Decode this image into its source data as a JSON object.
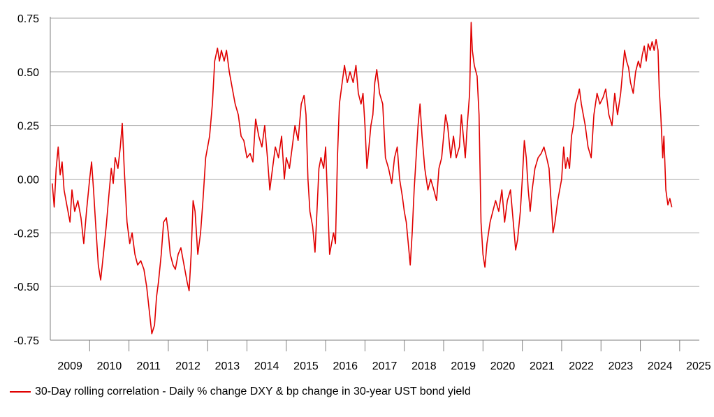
{
  "chart_data": {
    "type": "line",
    "title": "",
    "xlabel": "",
    "ylabel": "",
    "xlim": [
      2009.0,
      2025.5
    ],
    "ylim": [
      -0.75,
      0.75
    ],
    "y_ticks": [
      0.75,
      0.5,
      0.25,
      0.0,
      -0.25,
      -0.5,
      -0.75
    ],
    "y_tick_labels": [
      "0.75",
      "0.50",
      "0.25",
      "0.00",
      "-0.25",
      "-0.50",
      "-0.75"
    ],
    "x_tick_labels": [
      "2009",
      "2010",
      "2011",
      "2012",
      "2013",
      "2014",
      "2015",
      "2016",
      "2017",
      "2018",
      "2019",
      "2020",
      "2021",
      "2022",
      "2023",
      "2024",
      "2025"
    ],
    "grid": "horizontal",
    "legend_position": "bottom-left",
    "series": [
      {
        "name": "30-Day rolling correlation - Daily % change DXY & bp change in 30-year UST bond yield",
        "color": "#e00000",
        "points": [
          [
            2009.05,
            -0.02
          ],
          [
            2009.1,
            -0.13
          ],
          [
            2009.15,
            0.05
          ],
          [
            2009.2,
            0.15
          ],
          [
            2009.25,
            0.02
          ],
          [
            2009.3,
            0.08
          ],
          [
            2009.35,
            -0.05
          ],
          [
            2009.42,
            -0.12
          ],
          [
            2009.5,
            -0.2
          ],
          [
            2009.55,
            -0.05
          ],
          [
            2009.62,
            -0.15
          ],
          [
            2009.7,
            -0.1
          ],
          [
            2009.78,
            -0.18
          ],
          [
            2009.85,
            -0.3
          ],
          [
            2009.92,
            -0.15
          ],
          [
            2010.0,
            0.0
          ],
          [
            2010.05,
            0.08
          ],
          [
            2010.1,
            -0.05
          ],
          [
            2010.15,
            -0.2
          ],
          [
            2010.22,
            -0.4
          ],
          [
            2010.28,
            -0.47
          ],
          [
            2010.35,
            -0.35
          ],
          [
            2010.42,
            -0.22
          ],
          [
            2010.5,
            -0.05
          ],
          [
            2010.55,
            0.05
          ],
          [
            2010.6,
            -0.02
          ],
          [
            2010.65,
            0.1
          ],
          [
            2010.72,
            0.05
          ],
          [
            2010.78,
            0.15
          ],
          [
            2010.83,
            0.26
          ],
          [
            2010.88,
            0.05
          ],
          [
            2010.95,
            -0.2
          ],
          [
            2011.02,
            -0.3
          ],
          [
            2011.08,
            -0.25
          ],
          [
            2011.15,
            -0.35
          ],
          [
            2011.22,
            -0.4
          ],
          [
            2011.3,
            -0.38
          ],
          [
            2011.38,
            -0.42
          ],
          [
            2011.45,
            -0.5
          ],
          [
            2011.52,
            -0.62
          ],
          [
            2011.58,
            -0.72
          ],
          [
            2011.65,
            -0.68
          ],
          [
            2011.7,
            -0.55
          ],
          [
            2011.75,
            -0.48
          ],
          [
            2011.82,
            -0.35
          ],
          [
            2011.88,
            -0.2
          ],
          [
            2011.95,
            -0.18
          ],
          [
            2012.0,
            -0.25
          ],
          [
            2012.05,
            -0.35
          ],
          [
            2012.12,
            -0.4
          ],
          [
            2012.18,
            -0.42
          ],
          [
            2012.25,
            -0.35
          ],
          [
            2012.32,
            -0.32
          ],
          [
            2012.4,
            -0.4
          ],
          [
            2012.48,
            -0.48
          ],
          [
            2012.53,
            -0.52
          ],
          [
            2012.58,
            -0.35
          ],
          [
            2012.63,
            -0.1
          ],
          [
            2012.68,
            -0.15
          ],
          [
            2012.75,
            -0.35
          ],
          [
            2012.82,
            -0.25
          ],
          [
            2012.88,
            -0.1
          ],
          [
            2012.95,
            0.1
          ],
          [
            2013.05,
            0.2
          ],
          [
            2013.12,
            0.35
          ],
          [
            2013.18,
            0.55
          ],
          [
            2013.25,
            0.61
          ],
          [
            2013.3,
            0.55
          ],
          [
            2013.35,
            0.6
          ],
          [
            2013.42,
            0.55
          ],
          [
            2013.48,
            0.6
          ],
          [
            2013.55,
            0.5
          ],
          [
            2013.62,
            0.43
          ],
          [
            2013.7,
            0.35
          ],
          [
            2013.78,
            0.3
          ],
          [
            2013.85,
            0.2
          ],
          [
            2013.92,
            0.18
          ],
          [
            2014.0,
            0.1
          ],
          [
            2014.08,
            0.12
          ],
          [
            2014.15,
            0.08
          ],
          [
            2014.22,
            0.28
          ],
          [
            2014.3,
            0.2
          ],
          [
            2014.38,
            0.15
          ],
          [
            2014.45,
            0.25
          ],
          [
            2014.52,
            0.1
          ],
          [
            2014.58,
            -0.05
          ],
          [
            2014.65,
            0.05
          ],
          [
            2014.72,
            0.15
          ],
          [
            2014.8,
            0.1
          ],
          [
            2014.88,
            0.2
          ],
          [
            2014.95,
            0.0
          ],
          [
            2015.0,
            0.1
          ],
          [
            2015.08,
            0.05
          ],
          [
            2015.15,
            0.15
          ],
          [
            2015.22,
            0.25
          ],
          [
            2015.3,
            0.18
          ],
          [
            2015.38,
            0.35
          ],
          [
            2015.45,
            0.39
          ],
          [
            2015.5,
            0.3
          ],
          [
            2015.55,
            0.0
          ],
          [
            2015.6,
            -0.15
          ],
          [
            2015.67,
            -0.22
          ],
          [
            2015.73,
            -0.34
          ],
          [
            2015.78,
            -0.15
          ],
          [
            2015.83,
            0.05
          ],
          [
            2015.88,
            0.1
          ],
          [
            2015.95,
            0.05
          ],
          [
            2016.0,
            0.15
          ],
          [
            2016.05,
            -0.1
          ],
          [
            2016.1,
            -0.35
          ],
          [
            2016.15,
            -0.3
          ],
          [
            2016.2,
            -0.25
          ],
          [
            2016.25,
            -0.3
          ],
          [
            2016.3,
            0.1
          ],
          [
            2016.35,
            0.35
          ],
          [
            2016.42,
            0.45
          ],
          [
            2016.48,
            0.53
          ],
          [
            2016.55,
            0.45
          ],
          [
            2016.62,
            0.5
          ],
          [
            2016.7,
            0.45
          ],
          [
            2016.77,
            0.53
          ],
          [
            2016.83,
            0.4
          ],
          [
            2016.9,
            0.35
          ],
          [
            2016.95,
            0.4
          ],
          [
            2017.0,
            0.25
          ],
          [
            2017.05,
            0.05
          ],
          [
            2017.1,
            0.15
          ],
          [
            2017.15,
            0.25
          ],
          [
            2017.2,
            0.3
          ],
          [
            2017.25,
            0.45
          ],
          [
            2017.3,
            0.51
          ],
          [
            2017.37,
            0.4
          ],
          [
            2017.45,
            0.35
          ],
          [
            2017.52,
            0.1
          ],
          [
            2017.6,
            0.05
          ],
          [
            2017.68,
            -0.02
          ],
          [
            2017.75,
            0.1
          ],
          [
            2017.82,
            0.15
          ],
          [
            2017.88,
            0.0
          ],
          [
            2017.95,
            -0.08
          ],
          [
            2018.0,
            -0.15
          ],
          [
            2018.05,
            -0.2
          ],
          [
            2018.1,
            -0.3
          ],
          [
            2018.15,
            -0.4
          ],
          [
            2018.2,
            -0.25
          ],
          [
            2018.25,
            -0.05
          ],
          [
            2018.3,
            0.1
          ],
          [
            2018.35,
            0.25
          ],
          [
            2018.4,
            0.35
          ],
          [
            2018.45,
            0.2
          ],
          [
            2018.52,
            0.05
          ],
          [
            2018.6,
            -0.05
          ],
          [
            2018.67,
            0.0
          ],
          [
            2018.75,
            -0.05
          ],
          [
            2018.82,
            -0.1
          ],
          [
            2018.88,
            0.05
          ],
          [
            2018.95,
            0.1
          ],
          [
            2019.0,
            0.2
          ],
          [
            2019.05,
            0.3
          ],
          [
            2019.1,
            0.25
          ],
          [
            2019.18,
            0.1
          ],
          [
            2019.25,
            0.2
          ],
          [
            2019.32,
            0.1
          ],
          [
            2019.4,
            0.15
          ],
          [
            2019.45,
            0.3
          ],
          [
            2019.5,
            0.2
          ],
          [
            2019.55,
            0.1
          ],
          [
            2019.6,
            0.25
          ],
          [
            2019.66,
            0.4
          ],
          [
            2019.7,
            0.73
          ],
          [
            2019.73,
            0.6
          ],
          [
            2019.78,
            0.53
          ],
          [
            2019.85,
            0.48
          ],
          [
            2019.9,
            0.3
          ],
          [
            2019.95,
            -0.2
          ],
          [
            2020.0,
            -0.35
          ],
          [
            2020.05,
            -0.41
          ],
          [
            2020.1,
            -0.3
          ],
          [
            2020.18,
            -0.2
          ],
          [
            2020.25,
            -0.15
          ],
          [
            2020.32,
            -0.1
          ],
          [
            2020.4,
            -0.15
          ],
          [
            2020.48,
            -0.05
          ],
          [
            2020.55,
            -0.2
          ],
          [
            2020.62,
            -0.1
          ],
          [
            2020.7,
            -0.05
          ],
          [
            2020.77,
            -0.2
          ],
          [
            2020.83,
            -0.33
          ],
          [
            2020.88,
            -0.28
          ],
          [
            2020.95,
            -0.15
          ],
          [
            2021.0,
            0.0
          ],
          [
            2021.05,
            0.18
          ],
          [
            2021.1,
            0.1
          ],
          [
            2021.15,
            -0.05
          ],
          [
            2021.2,
            -0.15
          ],
          [
            2021.25,
            -0.05
          ],
          [
            2021.32,
            0.05
          ],
          [
            2021.4,
            0.1
          ],
          [
            2021.48,
            0.12
          ],
          [
            2021.55,
            0.15
          ],
          [
            2021.62,
            0.1
          ],
          [
            2021.68,
            0.05
          ],
          [
            2021.73,
            -0.1
          ],
          [
            2021.78,
            -0.25
          ],
          [
            2021.83,
            -0.2
          ],
          [
            2021.9,
            -0.1
          ],
          [
            2021.95,
            -0.05
          ],
          [
            2022.0,
            0.0
          ],
          [
            2022.05,
            0.15
          ],
          [
            2022.1,
            0.05
          ],
          [
            2022.15,
            0.1
          ],
          [
            2022.2,
            0.05
          ],
          [
            2022.25,
            0.2
          ],
          [
            2022.3,
            0.25
          ],
          [
            2022.35,
            0.35
          ],
          [
            2022.4,
            0.38
          ],
          [
            2022.45,
            0.42
          ],
          [
            2022.5,
            0.35
          ],
          [
            2022.55,
            0.3
          ],
          [
            2022.6,
            0.25
          ],
          [
            2022.67,
            0.15
          ],
          [
            2022.75,
            0.1
          ],
          [
            2022.82,
            0.3
          ],
          [
            2022.9,
            0.4
          ],
          [
            2022.97,
            0.35
          ],
          [
            2023.05,
            0.38
          ],
          [
            2023.12,
            0.42
          ],
          [
            2023.2,
            0.3
          ],
          [
            2023.28,
            0.25
          ],
          [
            2023.35,
            0.4
          ],
          [
            2023.42,
            0.3
          ],
          [
            2023.5,
            0.4
          ],
          [
            2023.55,
            0.5
          ],
          [
            2023.6,
            0.6
          ],
          [
            2023.65,
            0.55
          ],
          [
            2023.7,
            0.52
          ],
          [
            2023.75,
            0.45
          ],
          [
            2023.82,
            0.4
          ],
          [
            2023.88,
            0.5
          ],
          [
            2023.95,
            0.55
          ],
          [
            2024.0,
            0.52
          ],
          [
            2024.05,
            0.58
          ],
          [
            2024.1,
            0.62
          ],
          [
            2024.15,
            0.55
          ],
          [
            2024.2,
            0.63
          ],
          [
            2024.25,
            0.6
          ],
          [
            2024.3,
            0.64
          ],
          [
            2024.35,
            0.6
          ],
          [
            2024.4,
            0.65
          ],
          [
            2024.45,
            0.6
          ],
          [
            2024.48,
            0.42
          ],
          [
            2024.52,
            0.3
          ],
          [
            2024.57,
            0.1
          ],
          [
            2024.6,
            0.2
          ],
          [
            2024.65,
            -0.05
          ],
          [
            2024.7,
            -0.12
          ],
          [
            2024.75,
            -0.09
          ],
          [
            2024.8,
            -0.13
          ]
        ]
      }
    ]
  },
  "legend": {
    "label": "30-Day rolling correlation - Daily % change DXY & bp change in 30-year UST bond yield",
    "color": "#e00000"
  },
  "colors": {
    "grid": "#a6a6a6",
    "axis": "#7f7f7f",
    "line": "#e00000"
  }
}
